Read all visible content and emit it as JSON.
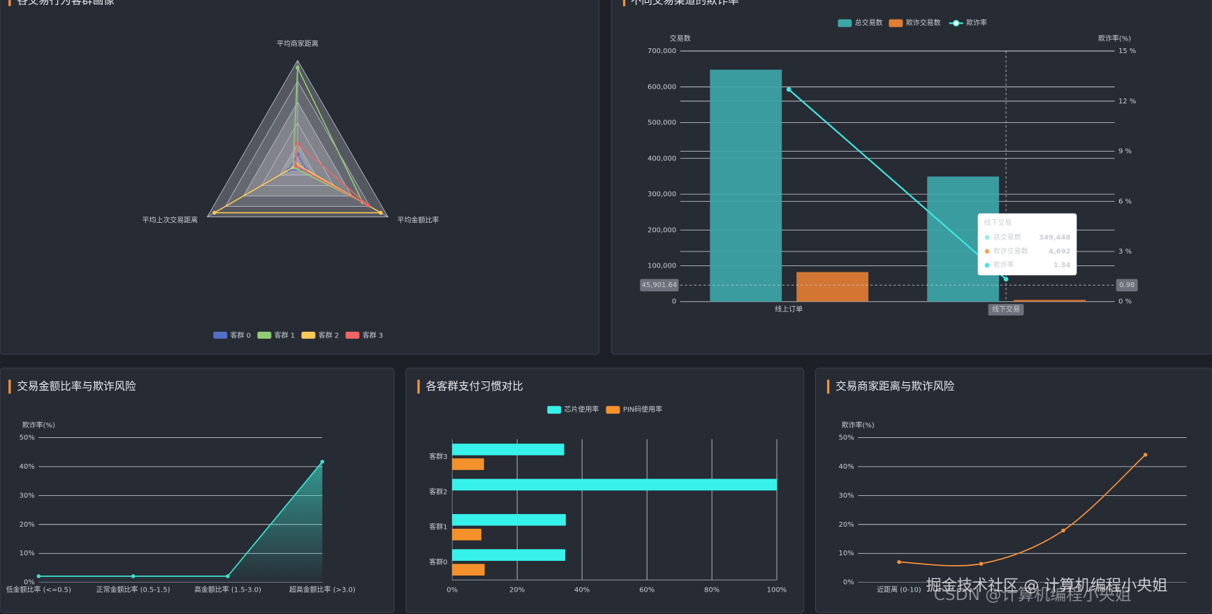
{
  "chart_data": [
    {
      "type": "radar",
      "title": "各交易行为客群画像",
      "indicators": [
        "平均商家距离",
        "平均金额比率",
        "平均上次交易距离"
      ],
      "rlim": [
        0,
        1
      ],
      "series": [
        {
          "name": "客群 0",
          "color": "#5470c6",
          "values": [
            0.1,
            0.1,
            0.1
          ]
        },
        {
          "name": "客群 1",
          "color": "#91cc75",
          "values": [
            0.93,
            0.72,
            0.05
          ]
        },
        {
          "name": "客群 2",
          "color": "#fac858",
          "values": [
            0.0,
            0.92,
            0.92
          ]
        },
        {
          "name": "客群 3",
          "color": "#ee6666",
          "values": [
            0.2,
            0.78,
            0.02
          ]
        }
      ],
      "legend": "bottom"
    },
    {
      "type": "bar-line",
      "title": "不同交易渠道的欺诈率",
      "categories": [
        "线上订单",
        "线下交易"
      ],
      "y_label": "交易数",
      "y2_label": "欺诈率(%)",
      "series": [
        {
          "name": "总交易数",
          "type": "bar",
          "color": "#3ca6a8",
          "values": [
            648000,
            349448
          ],
          "value_labels": [
            null,
            "349,448"
          ]
        },
        {
          "name": "欺诈交易数",
          "type": "bar",
          "color": "#e27d34",
          "values": [
            82500,
            4692
          ],
          "value_labels": [
            null,
            "4,692"
          ]
        },
        {
          "name": "欺诈率",
          "type": "line",
          "axis": "y2",
          "color": "#3fe8e2",
          "values": [
            12.7,
            1.34
          ]
        }
      ],
      "ylim": [
        0,
        700000
      ],
      "yticks": [
        0,
        {
          "value": 100000,
          "label": "100,000"
        },
        {
          "value": 200000,
          "label": "200,000"
        },
        {
          "value": 300000,
          "label": "300,000"
        },
        {
          "value": 400000,
          "label": "400,000"
        },
        {
          "value": 500000,
          "label": "500,000"
        },
        {
          "value": 600000,
          "label": "600,000"
        },
        {
          "value": 700000,
          "label": "700,000"
        }
      ],
      "y2lim": [
        0,
        15
      ],
      "y2ticks": [
        {
          "value": 0,
          "label": "0 %"
        },
        {
          "value": 3,
          "label": "3 %"
        },
        {
          "value": 6,
          "label": "6 %"
        },
        {
          "value": 9,
          "label": "9 %"
        },
        {
          "value": 12,
          "label": "12 %"
        },
        {
          "value": 15,
          "label": "15 %"
        }
      ],
      "pointer": {
        "y": {
          "value": 45901.64,
          "label": "45,901.64"
        },
        "y2": 0.98
      },
      "legend": "top"
    },
    {
      "type": "line",
      "title": "交易金额比率与欺诈风险",
      "area": true,
      "color": "#3fe0d0",
      "y_label": "欺诈率(%)",
      "categories": [
        "低金额比率 (<=0.5)",
        "正常金额比率 (0.5-1.5)",
        "高金额比率 (1.5-3.0)",
        "超高金额比率 (>3.0)"
      ],
      "values": [
        2.1,
        2.1,
        2.1,
        41.7
      ],
      "ylim": [
        0,
        50
      ],
      "yticks": [
        {
          "value": 0,
          "label": "0%"
        },
        {
          "value": 10,
          "label": "10%"
        },
        {
          "value": 20,
          "label": "20%"
        },
        {
          "value": 30,
          "label": "30%"
        },
        {
          "value": 40,
          "label": "40%"
        },
        {
          "value": 50,
          "label": "50%"
        }
      ]
    },
    {
      "type": "hbar",
      "title": "各客群支付习惯对比",
      "categories": [
        "客群0",
        "客群1",
        "客群2",
        "客群3"
      ],
      "series": [
        {
          "name": "芯片使用率",
          "color": "#37f2ea",
          "values": [
            34.8,
            35,
            100,
            34.5
          ]
        },
        {
          "name": "PIN码使用率",
          "color": "#f5912b",
          "values": [
            10,
            9,
            0,
            9.8
          ]
        }
      ],
      "xlim": [
        0,
        100
      ],
      "xticks": [
        {
          "value": 0,
          "label": "0%"
        },
        {
          "value": 20,
          "label": "20%"
        },
        {
          "value": 40,
          "label": "40%"
        },
        {
          "value": 60,
          "label": "60%"
        },
        {
          "value": 80,
          "label": "80%"
        },
        {
          "value": 100,
          "label": "100%"
        }
      ],
      "legend": "top"
    },
    {
      "type": "line",
      "title": "交易商家距离与欺诈风险",
      "smooth": true,
      "color": "#f5913a",
      "y_label": "欺诈率(%)",
      "categories": [
        "近距离 (0-10)",
        null,
        null,
        null
      ],
      "values": [
        7.0,
        6.4,
        17.9,
        44.1
      ],
      "ylim": [
        0,
        50
      ],
      "yticks": [
        {
          "value": 0,
          "label": "0%"
        },
        {
          "value": 10,
          "label": "10%"
        },
        {
          "value": 20,
          "label": "20%"
        },
        {
          "value": 30,
          "label": "30%"
        },
        {
          "value": 40,
          "label": "40%"
        },
        {
          "value": 50,
          "label": "50%"
        }
      ]
    }
  ],
  "watermark": [
    "掘金技术社区 @ 计算机编程小央姐",
    "CSDN @计算机编程小央姐"
  ]
}
